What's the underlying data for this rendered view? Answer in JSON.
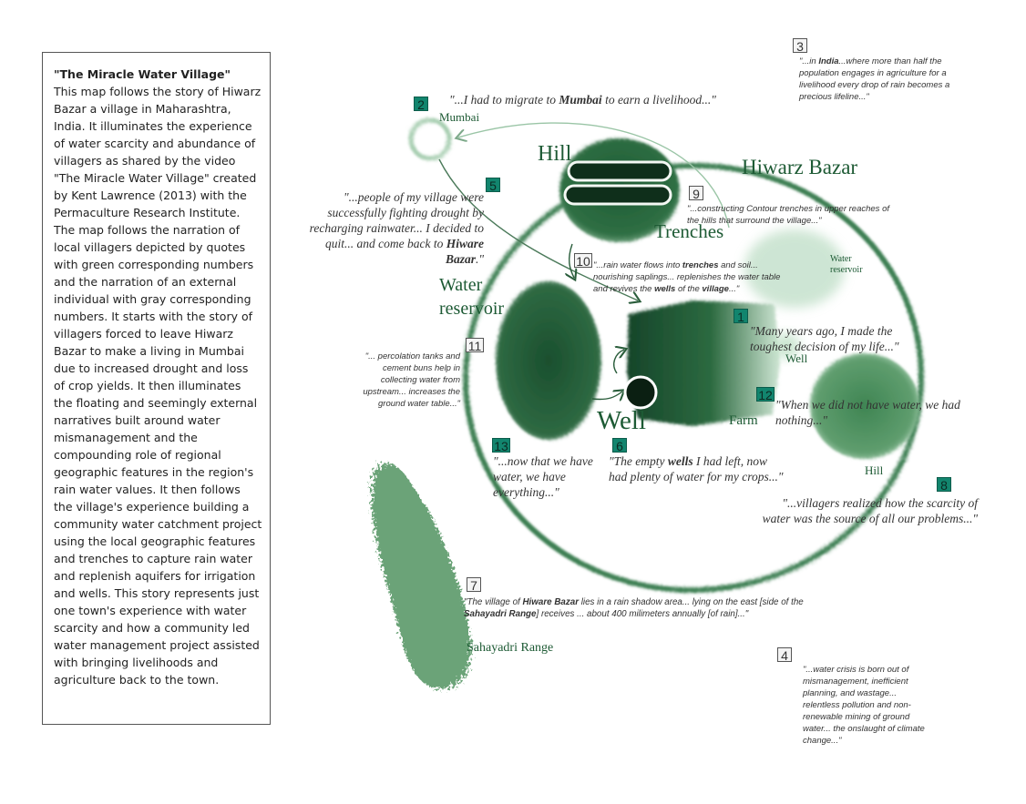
{
  "panel": {
    "title": "\"The Miracle Water Village\"",
    "body": "This map follows the story of Hiwarz Bazar a village in Maharashtra, India. It illuminates the experience of water scarcity and abundance of villagers as shared by the video \"The Miracle Water Village\" created by Kent Lawrence (2013) with the Permaculture Research Institute. The map follows the narration of local villagers depicted by quotes with green corresponding numbers and the narration of an external individual with gray corresponding numbers. It starts with the story of villagers forced to leave Hiwarz Bazar to make a living in Mumbai due to increased drought and loss of crop yields. It then illuminates the floating and seemingly external narratives built around water mismanagement and the compounding role of regional geographic features in the region's rain water values. It then follows the village's experience building a community water catchment project using the local geographic features and trenches to capture rain water and replenish aquifers for irrigation and wells. This story represents just one town's experience with water scarcity and how a community led water management project assisted with bringing livelihoods and agriculture back to the town."
  },
  "colors": {
    "dark_green": "#1d5a34",
    "mid_green": "#3d7f53",
    "light_green": "#8cc39c",
    "green_badge": "#12856e",
    "gray_badge": "#f4f4f4"
  },
  "labels": {
    "mumbai": "Mumbai",
    "hill_top": "Hill",
    "hiwarz_bazar": "Hiwarz Bazar",
    "trenches": "Trenches",
    "water_reservoir_big": "Water reservoir",
    "water_reservoir_small": "Water reservoir",
    "well_small": "Well",
    "well_big": "Well",
    "farm": "Farm",
    "hill_bottom": "Hill",
    "sahayadri": "Sahayadri Range"
  },
  "quotes": {
    "q1": {
      "num": "1",
      "type": "villager",
      "text": "\"Many years ago, I made the toughest decision of my life...\""
    },
    "q2": {
      "num": "2",
      "type": "villager",
      "pre": "\"...I had to migrate to ",
      "bold": "Mumbai",
      "post": " to earn a livelihood...\""
    },
    "q3": {
      "num": "3",
      "type": "external",
      "pre": "\"...in ",
      "bold": "India",
      "post": "...where more than half the population engages in agriculture for a livelihood every drop of rain becomes a precious lifeline...\""
    },
    "q4": {
      "num": "4",
      "type": "external",
      "text": "\"...water crisis is born out of mismanagement, inefficient planning, and wastage... relentless pollution and non-renewable mining of ground water... the onslaught of climate change...\""
    },
    "q5": {
      "num": "5",
      "type": "villager",
      "pre": "\"...people of my village were successfully fighting drought by recharging rainwater... I decided to quit... and come back to ",
      "bold": "Hiware Bazar",
      "post": ".\""
    },
    "q6": {
      "num": "6",
      "type": "villager",
      "pre": "\"The empty ",
      "bold": "wells",
      "post": " I had left, now had plenty of water for my crops...\""
    },
    "q7": {
      "num": "7",
      "type": "external",
      "pre": "\"The village of ",
      "bold": "Hiware Bazar",
      "mid": " lies in a rain shadow area... lying on the east [side of the ",
      "bold2": "Sahayadri Range",
      "post": "] receives ... about 400 milimeters annually [of rain]...\""
    },
    "q8": {
      "num": "8",
      "type": "villager",
      "text": "\"...villagers realized how the scarcity of water was the source of all our problems...\""
    },
    "q9": {
      "num": "9",
      "type": "external",
      "text": "\"...constructing Contour trenches in upper reaches of the hills that surround the village...\""
    },
    "q10": {
      "num": "10",
      "type": "external",
      "pre": "\"...rain water flows into ",
      "bold": "trenches",
      "mid": " and soil... nourishing saplings... replenishes the water table and revives the ",
      "bold2": "wells",
      "mid2": " of the ",
      "bold3": "village",
      "post": "...\""
    },
    "q11": {
      "num": "11",
      "type": "external",
      "text": "\"... percolation tanks and cement buns help in collecting water from upstream... increases the ground water table...\""
    },
    "q12": {
      "num": "12",
      "type": "villager",
      "text": "\"When we did not have water, we had nothing...\""
    },
    "q13": {
      "num": "13",
      "type": "villager",
      "text": "\"...now that we have water, we have everything...\""
    }
  }
}
